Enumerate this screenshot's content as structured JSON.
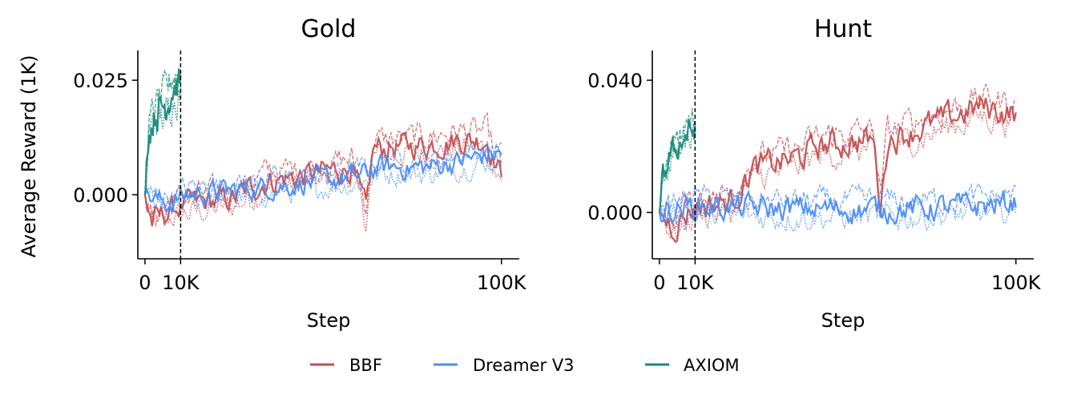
{
  "figure": {
    "shared_ylabel": "Average Reward (1K)",
    "legend_position": "bottom-center"
  },
  "legend": [
    {
      "name": "BBF",
      "color": "#c44e52"
    },
    {
      "name": "Dreamer V3",
      "color": "#4c8ef5"
    },
    {
      "name": "AXIOM",
      "color": "#1a8a7a"
    }
  ],
  "chart_data": [
    {
      "type": "line",
      "title": "Gold",
      "xlabel": "Step",
      "ylabel": "Average Reward (1K)",
      "xlim": [
        -2000,
        105000
      ],
      "ylim": [
        -0.014,
        0.0315
      ],
      "xticks": [
        {
          "value": 0,
          "label": "0"
        },
        {
          "value": 10000,
          "label": "10K"
        },
        {
          "value": 100000,
          "label": "100K"
        }
      ],
      "yticks": [
        {
          "value": 0.0,
          "label": "0.000"
        },
        {
          "value": 0.025,
          "label": "0.025"
        }
      ],
      "vline": 10000,
      "series": [
        {
          "name": "BBF",
          "color": "#c44e52",
          "x_end": 100000,
          "noise": 0.003,
          "trend": [
            [
              0,
              0.0
            ],
            [
              2000,
              -0.006
            ],
            [
              8000,
              -0.003
            ],
            [
              14000,
              -0.002
            ],
            [
              24000,
              -0.001
            ],
            [
              34000,
              0.003
            ],
            [
              44000,
              0.004
            ],
            [
              58000,
              0.006
            ],
            [
              62000,
              -0.004
            ],
            [
              64000,
              0.01
            ],
            [
              80000,
              0.011
            ],
            [
              88000,
              0.012
            ],
            [
              96000,
              0.012
            ],
            [
              100000,
              0.004
            ]
          ]
        },
        {
          "name": "Dreamer V3",
          "color": "#4c8ef5",
          "x_end": 100000,
          "noise": 0.0025,
          "trend": [
            [
              0,
              0.0
            ],
            [
              6000,
              -0.002
            ],
            [
              12000,
              0.0
            ],
            [
              24000,
              0.001
            ],
            [
              40000,
              0.002
            ],
            [
              60000,
              0.004
            ],
            [
              66000,
              0.006
            ],
            [
              80000,
              0.006
            ],
            [
              92000,
              0.008
            ],
            [
              100000,
              0.009
            ]
          ]
        },
        {
          "name": "AXIOM",
          "color": "#1a8a7a",
          "x_end": 10000,
          "noise": 0.004,
          "trend": [
            [
              0,
              0.0
            ],
            [
              1000,
              0.014
            ],
            [
              3000,
              0.018
            ],
            [
              6000,
              0.02
            ],
            [
              8000,
              0.024
            ],
            [
              10000,
              0.024
            ]
          ]
        }
      ]
    },
    {
      "type": "line",
      "title": "Hunt",
      "xlabel": "Step",
      "ylabel": "",
      "xlim": [
        -2000,
        105000
      ],
      "ylim": [
        -0.014,
        0.049
      ],
      "xticks": [
        {
          "value": 0,
          "label": "0"
        },
        {
          "value": 10000,
          "label": "10K"
        },
        {
          "value": 100000,
          "label": "100K"
        }
      ],
      "yticks": [
        {
          "value": 0.0,
          "label": "0.000"
        },
        {
          "value": 0.04,
          "label": "0.040"
        }
      ],
      "vline": 10000,
      "series": [
        {
          "name": "BBF",
          "color": "#c44e52",
          "x_end": 100000,
          "noise": 0.0045,
          "trend": [
            [
              0,
              0.0
            ],
            [
              4000,
              -0.004
            ],
            [
              10000,
              0.002
            ],
            [
              20000,
              0.003
            ],
            [
              26000,
              0.013
            ],
            [
              40000,
              0.017
            ],
            [
              44000,
              0.02
            ],
            [
              60000,
              0.022
            ],
            [
              62000,
              0.002
            ],
            [
              64000,
              0.022
            ],
            [
              80000,
              0.028
            ],
            [
              90000,
              0.032
            ],
            [
              100000,
              0.03
            ]
          ]
        },
        {
          "name": "Dreamer V3",
          "color": "#4c8ef5",
          "x_end": 100000,
          "noise": 0.004,
          "trend": [
            [
              0,
              0.0
            ],
            [
              10000,
              0.002
            ],
            [
              30000,
              0.001
            ],
            [
              50000,
              0.001
            ],
            [
              70000,
              0.001
            ],
            [
              90000,
              0.002
            ],
            [
              100000,
              0.003
            ]
          ]
        },
        {
          "name": "AXIOM",
          "color": "#1a8a7a",
          "x_end": 10000,
          "noise": 0.004,
          "trend": [
            [
              0,
              0.0
            ],
            [
              1000,
              0.01
            ],
            [
              3000,
              0.017
            ],
            [
              6000,
              0.021
            ],
            [
              8000,
              0.024
            ],
            [
              10000,
              0.025
            ]
          ]
        }
      ]
    }
  ]
}
